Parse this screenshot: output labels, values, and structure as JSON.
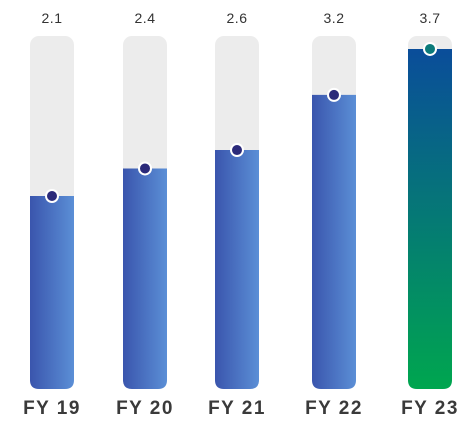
{
  "chart_data": {
    "type": "bar",
    "categories": [
      "FY 19",
      "FY 20",
      "FY 21",
      "FY 22",
      "FY 23"
    ],
    "values": [
      2.1,
      2.4,
      2.6,
      3.2,
      3.7
    ],
    "value_labels": [
      "2.1",
      "2.4",
      "2.6",
      "3.2",
      "3.7"
    ],
    "title": "",
    "xlabel": "",
    "ylabel": "",
    "ylim": [
      0,
      4.0
    ],
    "grid": false,
    "legend": "none",
    "colors": {
      "track": "#ececec",
      "bar_light": "#5b8fd6",
      "bar_dark": "#3a55ad",
      "marker_dark": "#2b2a7a",
      "highlight_top": "#0a4d9a",
      "highlight_bottom": "#00a64f",
      "highlight_marker": "#0b7a7a"
    }
  }
}
